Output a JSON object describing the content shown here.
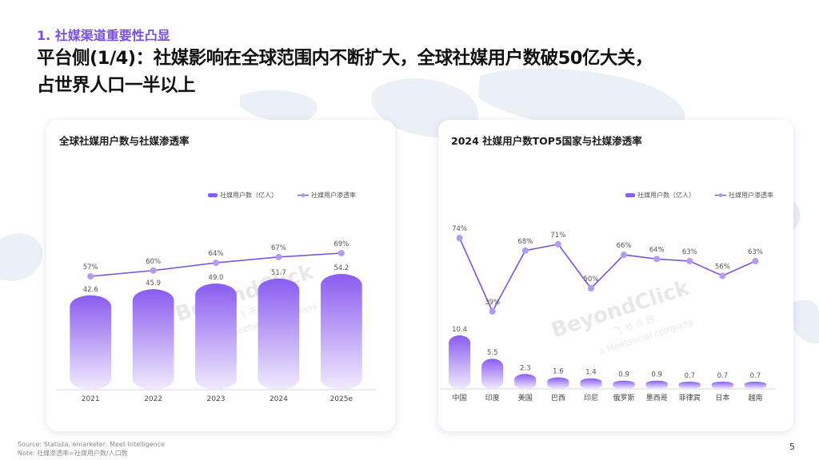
{
  "header": {
    "section_label": "1. 社媒渠道重要性凸显",
    "headline_line1": "平台侧(1/4)：社媒影响在全球范围内不断扩大，全球社媒用户数破50亿大关，",
    "headline_line2": "占世界人口一半以上"
  },
  "watermark": {
    "brand": "BeyondClick",
    "chinese": "飞 书 点 跃",
    "tagline": "a Meetsocial company"
  },
  "colors": {
    "accent": "#7b4ee0",
    "bar_top": "#8a5cf0",
    "bar_bottom": "#f1ebfd",
    "line": "#7b55e0",
    "marker": "#b49bf0"
  },
  "chart_data": [
    {
      "type": "bar+line",
      "title": "全球社媒用户数与社媒渗透率",
      "categories": [
        "2021",
        "2022",
        "2023",
        "2024",
        "2025e"
      ],
      "series": [
        {
          "name": "社媒用户数（亿人）",
          "kind": "bar",
          "values": [
            42.6,
            45.9,
            49.0,
            51.7,
            54.2
          ],
          "labels": [
            "42.6",
            "45.9",
            "49.0",
            "51.7",
            "54.2"
          ]
        },
        {
          "name": "社媒用户渗透率",
          "kind": "line",
          "values": [
            57,
            60,
            64,
            67,
            69
          ],
          "labels": [
            "57%",
            "60%",
            "64%",
            "67%",
            "69%"
          ]
        }
      ],
      "legend": "top-right",
      "grid": false
    },
    {
      "type": "bar+line",
      "title": "2024 社媒用户数TOP5国家与社媒渗透率",
      "categories": [
        "中国",
        "印度",
        "美国",
        "巴西",
        "印尼",
        "俄罗斯",
        "墨西哥",
        "菲律宾",
        "日本",
        "越南"
      ],
      "series": [
        {
          "name": "社媒用户数（亿人）",
          "kind": "bar",
          "values": [
            10.4,
            5.5,
            2.3,
            1.6,
            1.4,
            0.9,
            0.9,
            0.7,
            0.7,
            0.7
          ],
          "labels": [
            "10.4",
            "5.5",
            "2.3",
            "1.6",
            "1.4",
            "0.9",
            "0.9",
            "0.7",
            "0.7",
            "0.7"
          ]
        },
        {
          "name": "社媒用户渗透率",
          "kind": "line",
          "values": [
            74,
            39,
            68,
            71,
            50,
            66,
            64,
            63,
            56,
            63
          ],
          "labels": [
            "74%",
            "39%",
            "68%",
            "71%",
            "50%",
            "66%",
            "64%",
            "63%",
            "56%",
            "63%"
          ]
        }
      ],
      "legend": "top-right",
      "grid": false
    }
  ],
  "footer": {
    "source": "Source: Statista, emarketer, Meet Intelligence",
    "note": "Note: 社媒渗透率=社媒用户数/人口数",
    "page_number": "5"
  }
}
